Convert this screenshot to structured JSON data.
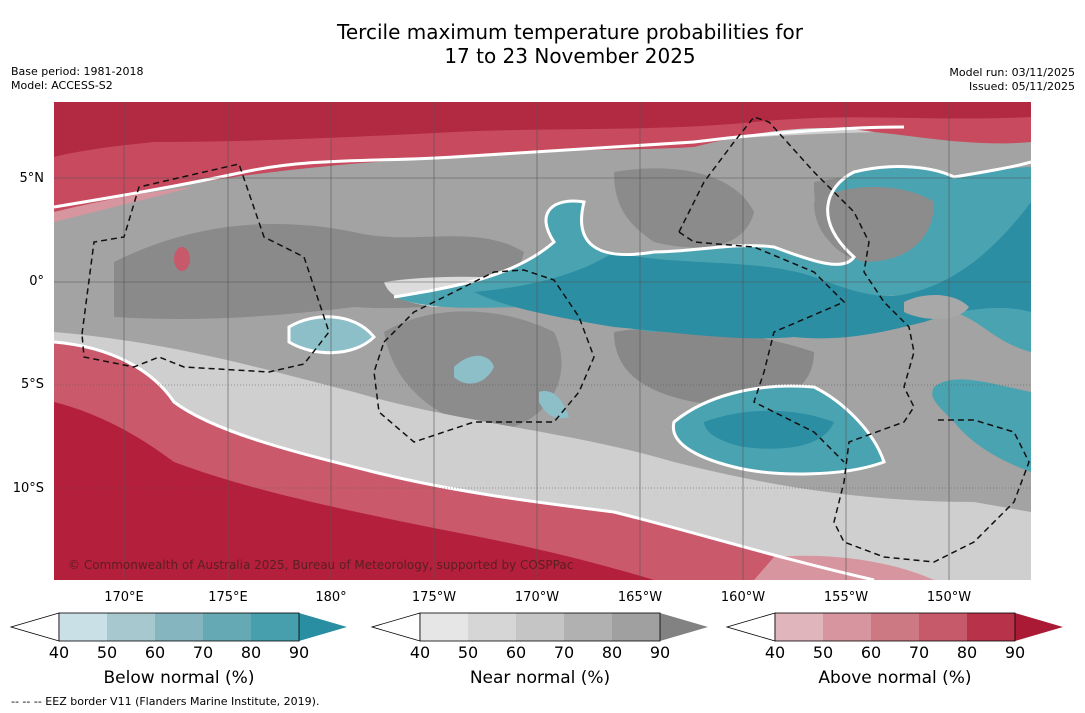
{
  "title_line1": "Tercile maximum temperature probabilities for",
  "title_line2": "17 to 23 November 2025",
  "meta": {
    "base_period": "Base period: 1981-2018",
    "model": "Model: ACCESS-S2",
    "model_run": "Model run: 03/11/2025",
    "issued": "Issued: 05/11/2025"
  },
  "copyright": "© Commonwealth of Australia 2025, Bureau of Meteorology, supported by COSPPac",
  "lat_labels": [
    "5°N",
    "0°",
    "5°S",
    "10°S"
  ],
  "lon_labels": [
    "170°E",
    "175°E",
    "180°",
    "175°W",
    "170°W",
    "165°W",
    "160°W",
    "155°W",
    "150°W"
  ],
  "colorbars": [
    {
      "label": "Below normal (%)",
      "ticks": [
        "40",
        "50",
        "60",
        "70",
        "80",
        "90"
      ],
      "colors": [
        "#c8e0e6",
        "#a7c8ce",
        "#85b5bf",
        "#65a9b5",
        "#479fad",
        "#2a8ea2"
      ]
    },
    {
      "label": "Near normal (%)",
      "ticks": [
        "40",
        "50",
        "60",
        "70",
        "80",
        "90"
      ],
      "colors": [
        "#e6e6e6",
        "#d6d6d6",
        "#c5c5c5",
        "#b1b1b1",
        "#a0a0a0",
        "#828282"
      ]
    },
    {
      "label": "Above normal (%)",
      "ticks": [
        "40",
        "50",
        "60",
        "70",
        "80",
        "90"
      ],
      "colors": [
        "#e0b5bc",
        "#d7959f",
        "#cd7984",
        "#c6596a",
        "#b83249",
        "#aa1a35"
      ]
    }
  ],
  "footnote": "--  --  -- EEZ border V11 (Flanders Marine Institute, 2019).",
  "legend_colors": {
    "above_strong": "#b01a38",
    "above_mid": "#c5475c",
    "above_light": "#d77f8c",
    "near_dark": "#8a8a8a",
    "near_mid": "#a6a6a6",
    "near_light": "#cfcfcf",
    "below_strong": "#2b8ea3",
    "below_mid": "#4aa3b1",
    "below_light": "#8cbfc8"
  }
}
